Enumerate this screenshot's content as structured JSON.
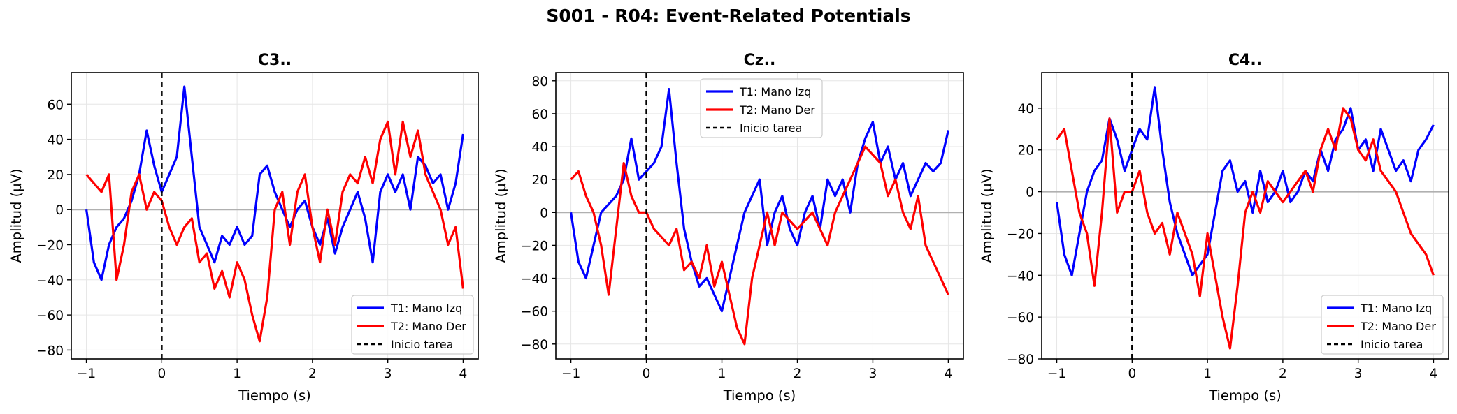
{
  "figure": {
    "suptitle": "S001 - R04: Event-Related Potentials"
  },
  "colors": {
    "t1": "#0000ff",
    "t2": "#ff0000",
    "onset": "#000000",
    "zero": "#b0b0b0",
    "grid": "#e6e6e6"
  },
  "chart_data": [
    {
      "type": "line",
      "title": "C3..",
      "xlabel": "Tiempo (s)",
      "ylabel": "Amplitud (µV)",
      "xlim": [
        -1.2,
        4.2
      ],
      "ylim": [
        -85,
        78
      ],
      "xticks": [
        -1,
        0,
        1,
        2,
        3,
        4
      ],
      "yticks": [
        -80,
        -60,
        -40,
        -20,
        0,
        20,
        40,
        60
      ],
      "legend": "bottom-right",
      "grid": true,
      "vline": {
        "x": 0,
        "label": "Inicio tarea"
      },
      "hline": 0,
      "series": [
        {
          "name": "T1: Mano Izq",
          "x": [
            -1.0,
            -0.9,
            -0.8,
            -0.7,
            -0.6,
            -0.5,
            -0.4,
            -0.3,
            -0.2,
            -0.1,
            0.0,
            0.1,
            0.2,
            0.3,
            0.4,
            0.5,
            0.6,
            0.7,
            0.8,
            0.9,
            1.0,
            1.1,
            1.2,
            1.3,
            1.4,
            1.5,
            1.6,
            1.7,
            1.8,
            1.9,
            2.0,
            2.1,
            2.2,
            2.3,
            2.4,
            2.5,
            2.6,
            2.7,
            2.8,
            2.9,
            3.0,
            3.1,
            3.2,
            3.3,
            3.4,
            3.5,
            3.6,
            3.7,
            3.8,
            3.9,
            4.0
          ],
          "y": [
            0,
            -30,
            -40,
            -20,
            -10,
            -5,
            5,
            20,
            45,
            25,
            10,
            20,
            30,
            70,
            30,
            -10,
            -20,
            -30,
            -15,
            -20,
            -10,
            -20,
            -15,
            20,
            25,
            10,
            0,
            -10,
            0,
            5,
            -10,
            -20,
            -5,
            -25,
            -10,
            0,
            10,
            -5,
            -30,
            10,
            20,
            10,
            20,
            0,
            30,
            25,
            15,
            20,
            0,
            15,
            43
          ]
        },
        {
          "name": "T2: Mano Der",
          "x": [
            -1.0,
            -0.9,
            -0.8,
            -0.7,
            -0.6,
            -0.5,
            -0.4,
            -0.3,
            -0.2,
            -0.1,
            0.0,
            0.1,
            0.2,
            0.3,
            0.4,
            0.5,
            0.6,
            0.7,
            0.8,
            0.9,
            1.0,
            1.1,
            1.2,
            1.3,
            1.4,
            1.5,
            1.6,
            1.7,
            1.8,
            1.9,
            2.0,
            2.1,
            2.2,
            2.3,
            2.4,
            2.5,
            2.6,
            2.7,
            2.8,
            2.9,
            3.0,
            3.1,
            3.2,
            3.3,
            3.4,
            3.5,
            3.6,
            3.7,
            3.8,
            3.9,
            4.0
          ],
          "y": [
            20,
            15,
            10,
            20,
            -40,
            -20,
            10,
            20,
            0,
            10,
            5,
            -10,
            -20,
            -10,
            -5,
            -30,
            -25,
            -45,
            -35,
            -50,
            -30,
            -40,
            -60,
            -75,
            -50,
            0,
            10,
            -20,
            10,
            20,
            -10,
            -30,
            0,
            -20,
            10,
            20,
            15,
            30,
            15,
            40,
            50,
            20,
            50,
            30,
            45,
            20,
            10,
            0,
            -20,
            -10,
            -45
          ]
        }
      ]
    },
    {
      "type": "line",
      "title": "Cz..",
      "xlabel": "Tiempo (s)",
      "ylabel": "Amplitud (µV)",
      "xlim": [
        -1.2,
        4.2
      ],
      "ylim": [
        -89,
        85
      ],
      "xticks": [
        -1,
        0,
        1,
        2,
        3,
        4
      ],
      "yticks": [
        -80,
        -60,
        -40,
        -20,
        0,
        20,
        40,
        60,
        80
      ],
      "legend": "top-center",
      "grid": true,
      "vline": {
        "x": 0,
        "label": "Inicio tarea"
      },
      "hline": 0,
      "series": [
        {
          "name": "T1: Mano Izq",
          "x": [
            -1.0,
            -0.9,
            -0.8,
            -0.7,
            -0.6,
            -0.5,
            -0.4,
            -0.3,
            -0.2,
            -0.1,
            0.0,
            0.1,
            0.2,
            0.3,
            0.4,
            0.5,
            0.6,
            0.7,
            0.8,
            0.9,
            1.0,
            1.1,
            1.2,
            1.3,
            1.4,
            1.5,
            1.6,
            1.7,
            1.8,
            1.9,
            2.0,
            2.1,
            2.2,
            2.3,
            2.4,
            2.5,
            2.6,
            2.7,
            2.8,
            2.9,
            3.0,
            3.1,
            3.2,
            3.3,
            3.4,
            3.5,
            3.6,
            3.7,
            3.8,
            3.9,
            4.0
          ],
          "y": [
            0,
            -30,
            -40,
            -20,
            0,
            5,
            10,
            20,
            45,
            20,
            25,
            30,
            40,
            75,
            30,
            -10,
            -30,
            -45,
            -40,
            -50,
            -60,
            -40,
            -20,
            0,
            10,
            20,
            -20,
            0,
            10,
            -10,
            -20,
            0,
            10,
            -10,
            20,
            10,
            20,
            0,
            30,
            45,
            55,
            30,
            40,
            20,
            30,
            10,
            20,
            30,
            25,
            30,
            50
          ]
        },
        {
          "name": "T2: Mano Der",
          "x": [
            -1.0,
            -0.9,
            -0.8,
            -0.7,
            -0.6,
            -0.5,
            -0.4,
            -0.3,
            -0.2,
            -0.1,
            0.0,
            0.1,
            0.2,
            0.3,
            0.4,
            0.5,
            0.6,
            0.7,
            0.8,
            0.9,
            1.0,
            1.1,
            1.2,
            1.3,
            1.4,
            1.5,
            1.6,
            1.7,
            1.8,
            1.9,
            2.0,
            2.1,
            2.2,
            2.3,
            2.4,
            2.5,
            2.6,
            2.7,
            2.8,
            2.9,
            3.0,
            3.1,
            3.2,
            3.3,
            3.4,
            3.5,
            3.6,
            3.7,
            3.8,
            3.9,
            4.0
          ],
          "y": [
            20,
            25,
            10,
            0,
            -20,
            -50,
            -10,
            30,
            10,
            0,
            0,
            -10,
            -15,
            -20,
            -10,
            -35,
            -30,
            -40,
            -20,
            -45,
            -30,
            -50,
            -70,
            -80,
            -40,
            -20,
            0,
            -20,
            0,
            -5,
            -10,
            -5,
            0,
            -10,
            -20,
            0,
            10,
            20,
            30,
            40,
            35,
            30,
            10,
            20,
            0,
            -10,
            10,
            -20,
            -30,
            -40,
            -50
          ]
        }
      ]
    },
    {
      "type": "line",
      "title": "C4..",
      "xlabel": "Tiempo (s)",
      "ylabel": "Amplitud (µV)",
      "xlim": [
        -1.2,
        4.2
      ],
      "ylim": [
        -80,
        57
      ],
      "xticks": [
        -1,
        0,
        1,
        2,
        3,
        4
      ],
      "yticks": [
        -80,
        -60,
        -40,
        -20,
        0,
        20,
        40
      ],
      "legend": "bottom-right",
      "grid": true,
      "vline": {
        "x": 0,
        "label": "Inicio tarea"
      },
      "hline": 0,
      "series": [
        {
          "name": "T1: Mano Izq",
          "x": [
            -1.0,
            -0.9,
            -0.8,
            -0.7,
            -0.6,
            -0.5,
            -0.4,
            -0.3,
            -0.2,
            -0.1,
            0.0,
            0.1,
            0.2,
            0.3,
            0.4,
            0.5,
            0.6,
            0.7,
            0.8,
            0.9,
            1.0,
            1.1,
            1.2,
            1.3,
            1.4,
            1.5,
            1.6,
            1.7,
            1.8,
            1.9,
            2.0,
            2.1,
            2.2,
            2.3,
            2.4,
            2.5,
            2.6,
            2.7,
            2.8,
            2.9,
            3.0,
            3.1,
            3.2,
            3.3,
            3.4,
            3.5,
            3.6,
            3.7,
            3.8,
            3.9,
            4.0
          ],
          "y": [
            -5,
            -30,
            -40,
            -20,
            0,
            10,
            15,
            35,
            25,
            10,
            20,
            30,
            25,
            50,
            20,
            -5,
            -20,
            -30,
            -40,
            -35,
            -30,
            -10,
            10,
            15,
            0,
            5,
            -10,
            10,
            -5,
            0,
            10,
            -5,
            0,
            10,
            5,
            20,
            10,
            25,
            30,
            40,
            20,
            25,
            10,
            30,
            20,
            10,
            15,
            5,
            20,
            25,
            32
          ]
        },
        {
          "name": "T2: Mano Der",
          "x": [
            -1.0,
            -0.9,
            -0.8,
            -0.7,
            -0.6,
            -0.5,
            -0.4,
            -0.3,
            -0.2,
            -0.1,
            0.0,
            0.1,
            0.2,
            0.3,
            0.4,
            0.5,
            0.6,
            0.7,
            0.8,
            0.9,
            1.0,
            1.1,
            1.2,
            1.3,
            1.4,
            1.5,
            1.6,
            1.7,
            1.8,
            1.9,
            2.0,
            2.1,
            2.2,
            2.3,
            2.4,
            2.5,
            2.6,
            2.7,
            2.8,
            2.9,
            3.0,
            3.1,
            3.2,
            3.3,
            3.4,
            3.5,
            3.6,
            3.7,
            3.8,
            3.9,
            4.0
          ],
          "y": [
            25,
            30,
            10,
            -10,
            -20,
            -45,
            -10,
            35,
            -10,
            0,
            0,
            10,
            -10,
            -20,
            -15,
            -30,
            -10,
            -20,
            -30,
            -50,
            -20,
            -40,
            -60,
            -75,
            -45,
            -10,
            0,
            -10,
            5,
            0,
            -5,
            0,
            5,
            10,
            0,
            20,
            30,
            20,
            40,
            35,
            20,
            15,
            25,
            10,
            5,
            0,
            -10,
            -20,
            -25,
            -30,
            -40
          ]
        }
      ]
    }
  ]
}
